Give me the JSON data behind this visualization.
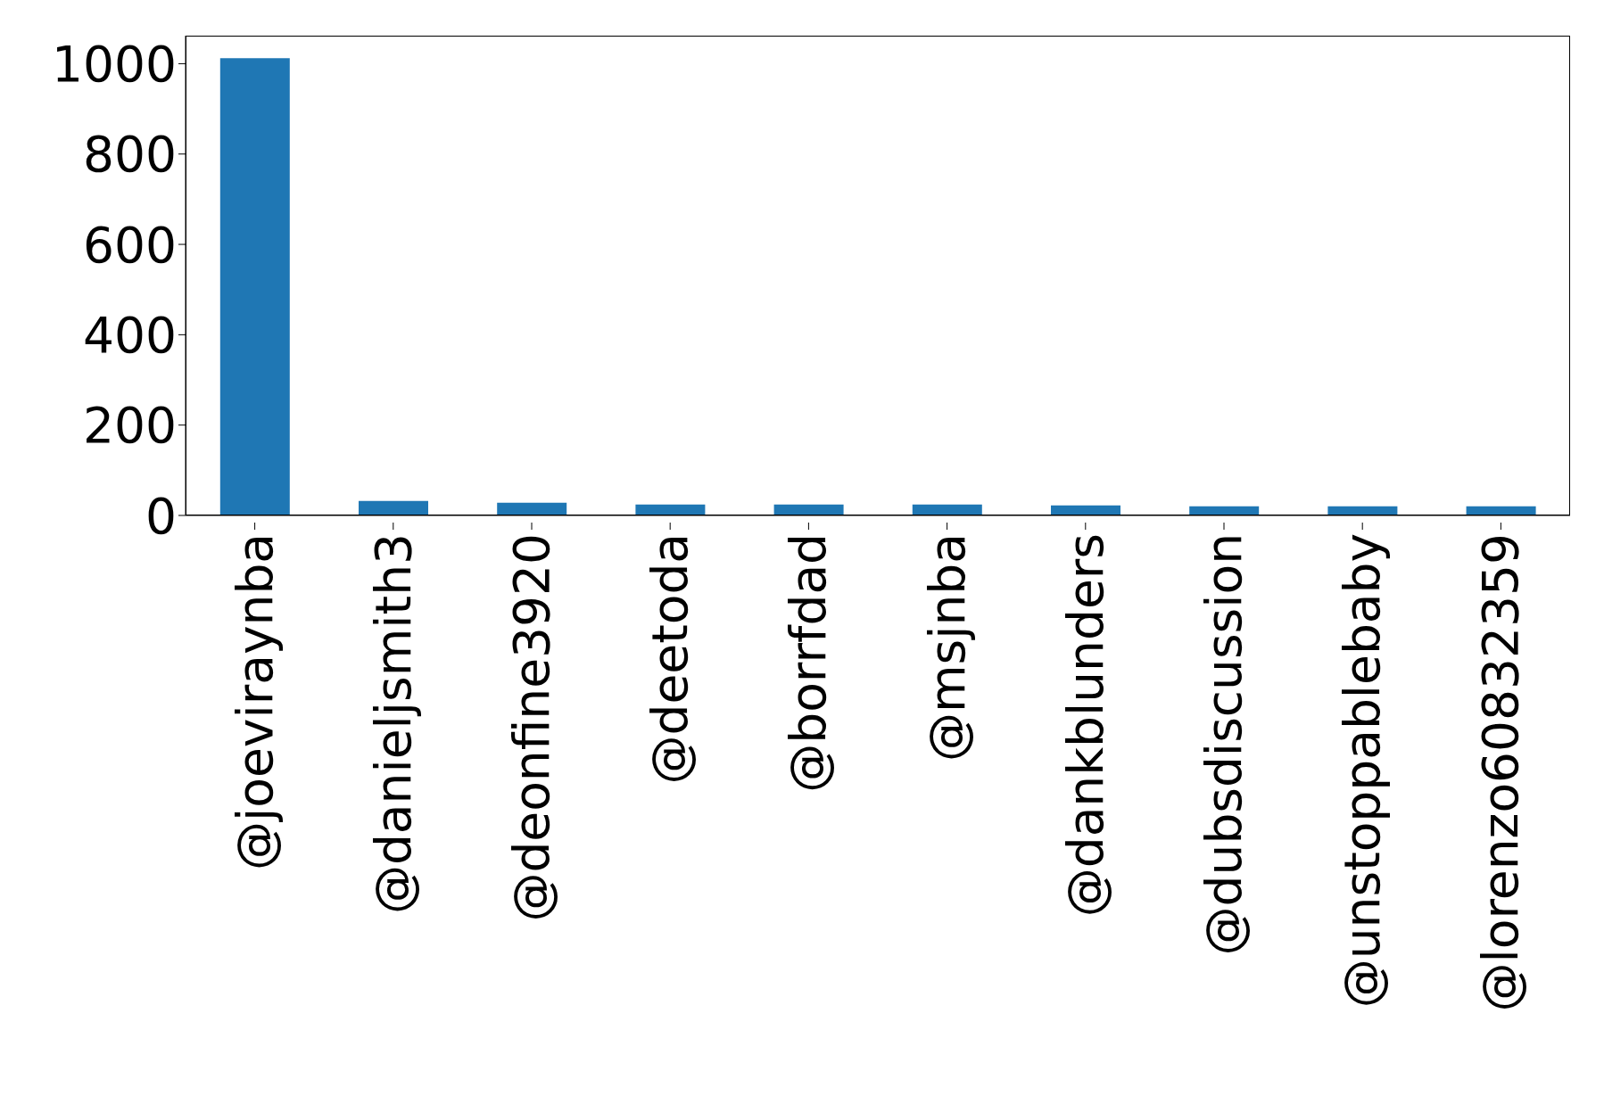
{
  "chart_data": {
    "type": "bar",
    "categories": [
      "@joeviraynba",
      "@danieljsmith3",
      "@deonfine3920",
      "@deetoda",
      "@borrfdad",
      "@msjnba",
      "@dankblunders",
      "@dubsdiscussion",
      "@unstoppablebaby",
      "@lorenzo60832359"
    ],
    "values": [
      1012,
      32,
      28,
      24,
      24,
      24,
      22,
      20,
      20,
      20
    ],
    "color": "#1f77b4",
    "ylim": [
      0,
      1062
    ],
    "yticks": [
      0,
      200,
      400,
      600,
      800,
      1000
    ],
    "grid": false
  }
}
